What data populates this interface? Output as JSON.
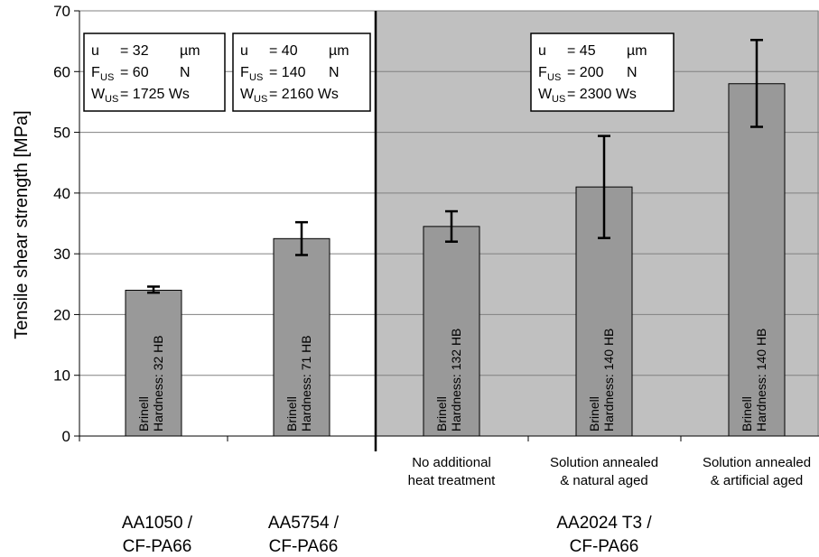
{
  "chart_data": {
    "type": "bar",
    "ylabel": "Tensile shear strength [MPa]",
    "ylim": [
      0,
      70
    ],
    "yticks": [
      "0",
      "10",
      "20",
      "30",
      "40",
      "50",
      "60",
      "70"
    ],
    "grid": true,
    "bars": [
      {
        "value": 24,
        "err_low": 23.6,
        "err_high": 24.6,
        "hardness_label": "Hardness: 32 HB"
      },
      {
        "value": 32.5,
        "err_low": 29.8,
        "err_high": 35.2,
        "hardness_label": "Hardness: 71 HB"
      },
      {
        "value": 34.5,
        "err_low": 32.0,
        "err_high": 37.0,
        "hardness_label": "Hardness: 132 HB"
      },
      {
        "value": 41.0,
        "err_low": 32.6,
        "err_high": 49.4,
        "hardness_label": "Hardness: 140 HB"
      },
      {
        "value": 58.0,
        "err_low": 50.9,
        "err_high": 65.2,
        "hardness_label": "Hardness: 140 HB"
      }
    ],
    "brinell_label": "Brinell",
    "subcategories": [
      {
        "line1": "No additional",
        "line2": "heat treatment"
      },
      {
        "line1": "Solution annealed",
        "line2": "& natural aged"
      },
      {
        "line1": "Solution annealed",
        "line2": "& artificial aged"
      }
    ],
    "groups": [
      {
        "line1": "AA1050 /",
        "line2": "CF-PA66"
      },
      {
        "line1": "AA5754 /",
        "line2": "CF-PA66"
      },
      {
        "line1": "AA2024 T3 /",
        "line2": "CF-PA66"
      }
    ],
    "parameter_boxes": [
      {
        "u_label": "u",
        "u_value": "= 32",
        "u_unit": "µm",
        "f_label": "F",
        "f_sub": "US",
        "f_value": "= 60",
        "f_unit": "N",
        "w_label": "W",
        "w_sub": "US",
        "w_value": "= 1725 Ws"
      },
      {
        "u_label": "u",
        "u_value": "= 40",
        "u_unit": "µm",
        "f_label": "F",
        "f_sub": "US",
        "f_value": "= 140",
        "f_unit": "N",
        "w_label": "W",
        "w_sub": "US",
        "w_value": "= 2160 Ws"
      },
      {
        "u_label": "u",
        "u_value": "= 45",
        "u_unit": "µm",
        "f_label": "F",
        "f_sub": "US",
        "f_value": "= 200",
        "f_unit": "N",
        "w_label": "W",
        "w_sub": "US",
        "w_value": "= 2300 Ws"
      }
    ],
    "colors": {
      "bar": "#999999",
      "shaded_region": "#c0c0c0",
      "grid": "#808080"
    }
  }
}
